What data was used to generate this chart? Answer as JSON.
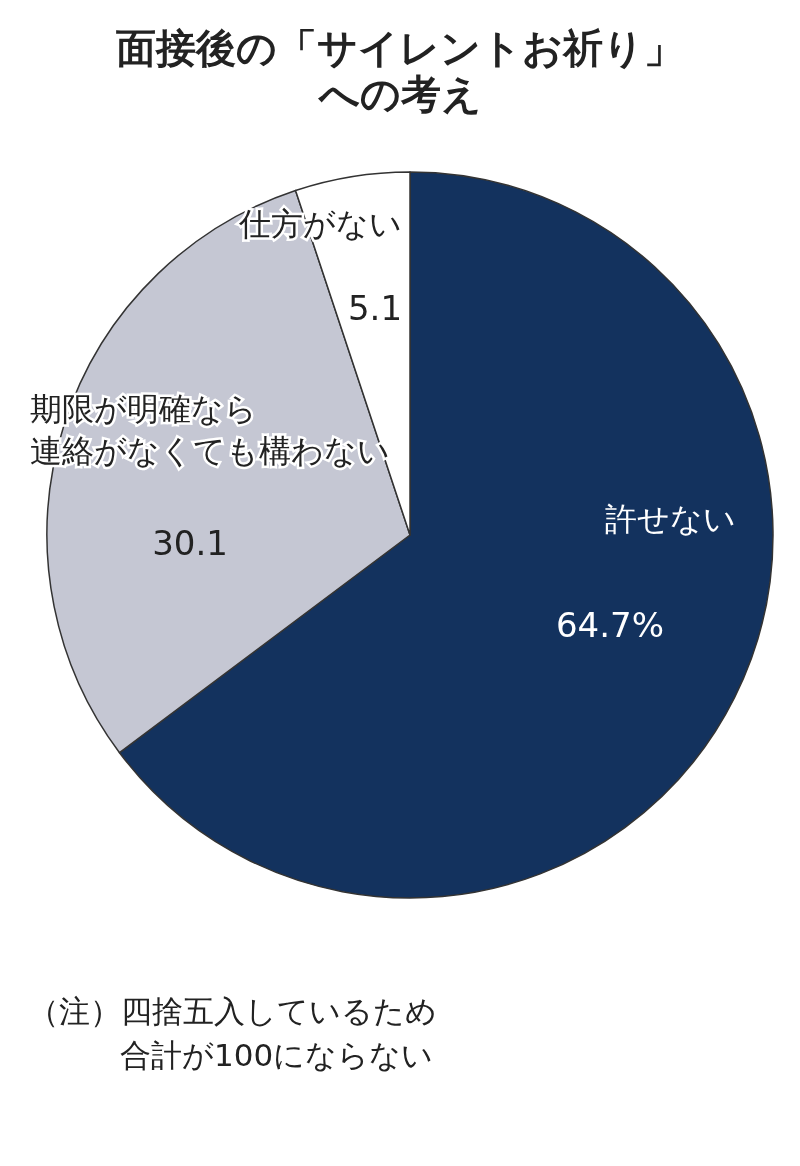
{
  "chart_data": {
    "type": "pie",
    "title": "面接後の「サイレントお祈り」への考え",
    "categories": [
      "許せない",
      "期限が明確なら連絡がなくても構わない",
      "仕方がない"
    ],
    "values": [
      64.7,
      30.1,
      5.1
    ],
    "colors": [
      "#13325e",
      "#c5c7d3",
      "#ffffff"
    ],
    "value_labels": [
      "64.7%",
      "30.1",
      "5.1"
    ],
    "annotations": [
      "（注）四捨五入しているため合計が100にならない"
    ]
  }
}
